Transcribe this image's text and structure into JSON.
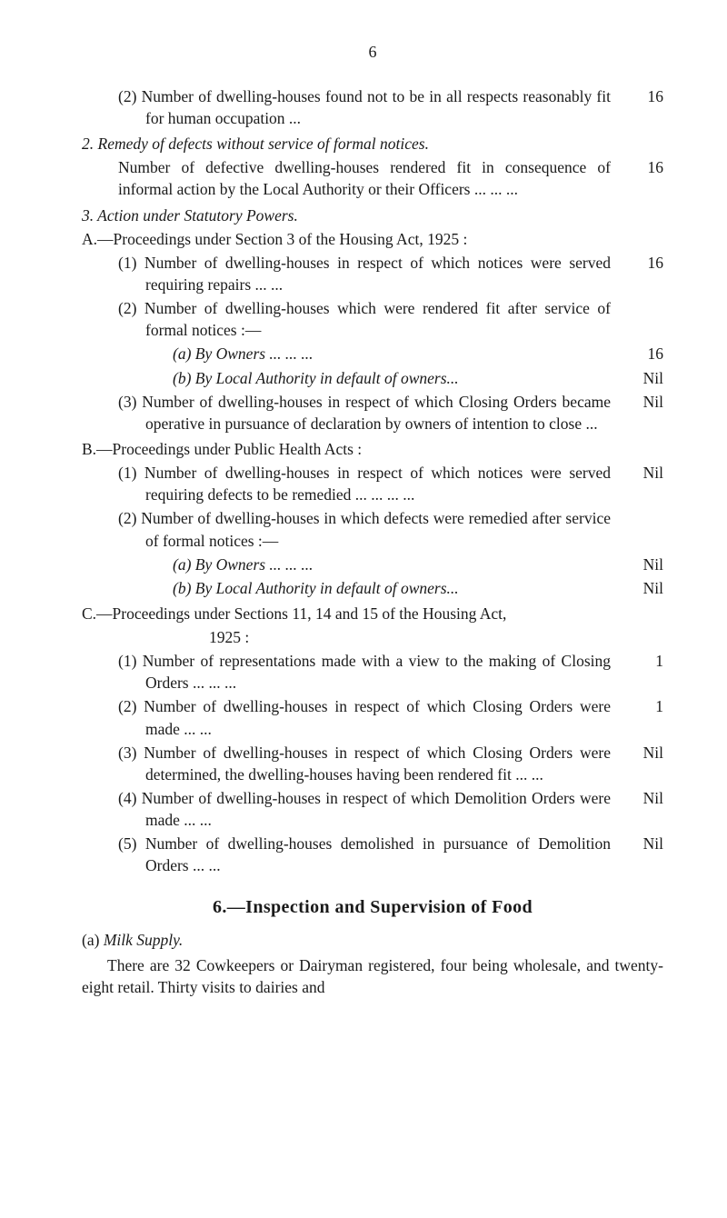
{
  "pageNumber": "6",
  "items": {
    "i2_text": "(2) Number of dwelling-houses found not to be in all respects reasonably fit for human occupation   ...",
    "i2_val": "16",
    "remedy_head": "2.   Remedy of defects without service of formal notices.",
    "remedy_text": "Number of defective dwelling-houses rendered fit in consequence of informal action by the Local Authority or their Officers ...             ...             ...",
    "remedy_val": "16",
    "action_head": "3.   Action under Statutory Powers.",
    "A_head": "A.—Proceedings under Section 3 of the Housing Act, 1925 :",
    "A1_text": "(1) Number of dwelling-houses in respect of which notices were served requiring repairs ...             ...",
    "A1_val": "16",
    "A2_text": "(2) Number of dwelling-houses which were rendered fit after service of formal notices :—",
    "A2a_text": "(a) By Owners          ...             ...             ...",
    "A2a_val": "16",
    "A2b_text": "(b) By Local Authority in default of owners...",
    "A2b_val": "Nil",
    "A3_text": "(3) Number of dwelling-houses in respect of which Closing Orders became operative in pursuance of declaration by owners of intention to close        ...",
    "A3_val": "Nil",
    "B_head": "B.—Proceedings under Public Health Acts :",
    "B1_text": "(1) Number of dwelling-houses in respect of which notices were served requiring defects to be reme­died             ...             ...             ...             ...",
    "B1_val": "Nil",
    "B2_text": "(2) Number of dwelling-houses in which defects were remedied after service of formal notices :—",
    "B2a_text": "(a) By Owners          ...             ...             ...",
    "B2a_val": "Nil",
    "B2b_text": "(b) By Local Authority in default of owners...",
    "B2b_val": "Nil",
    "C_head": "C.—Proceedings under Sections 11, 14 and 15 of the Housing Act,",
    "C_year": "1925 :",
    "C1_text": "(1) Number of representations made with a view to the making of Closing Orders ...             ...             ...",
    "C1_val": "1",
    "C2_text": "(2) Number of dwelling-houses in respect of which Closing Orders were made               ...             ...",
    "C2_val": "1",
    "C3_text": "(3) Number of dwelling-houses in respect of which Closing Orders were determined, the dwelling-houses having been rendered fit          ...             ...",
    "C3_val": "Nil",
    "C4_text": "(4) Number of dwelling-houses in respect of which Demolition Orders were made          ...             ...",
    "C4_val": "Nil",
    "C5_text": "(5) Number of dwelling-houses demolished in pursu­ance of Demolition Orders               ...             ...",
    "C5_val": "Nil",
    "section6_head": "6.—Inspection and Supervision of Food",
    "milk_head": "(a) Milk Supply.",
    "body": "There are 32 Cowkeepers or Dairyman registered, four being wholesale, and twenty-eight retail.       Thirty visits to dairies and"
  }
}
